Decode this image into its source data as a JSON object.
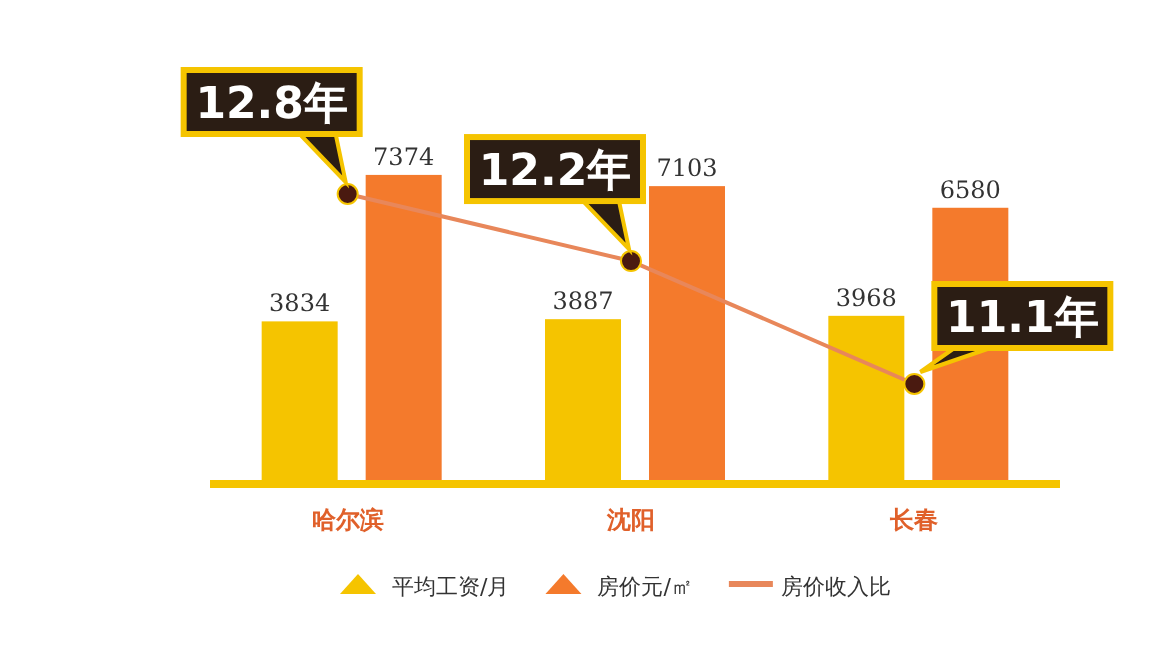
{
  "chart_data": {
    "type": "bar",
    "categories": [
      "哈尔滨",
      "沈阳",
      "长春"
    ],
    "series": [
      {
        "name": "平均工资/月",
        "color": "#f5c400",
        "values": [
          3834,
          3887,
          3968
        ]
      },
      {
        "name": "房价元/㎡",
        "color": "#f47a2c",
        "values": [
          7374,
          7103,
          6580
        ]
      },
      {
        "name": "房价收入比",
        "type": "line",
        "axis": "y2",
        "color": "#e8875a",
        "values": [
          12.8,
          12.2,
          11.1
        ],
        "value_labels": [
          "12.8年",
          "12.2年",
          "11.1年"
        ],
        "marker": "circle"
      }
    ],
    "data_labels": true,
    "legend": "bottom"
  }
}
